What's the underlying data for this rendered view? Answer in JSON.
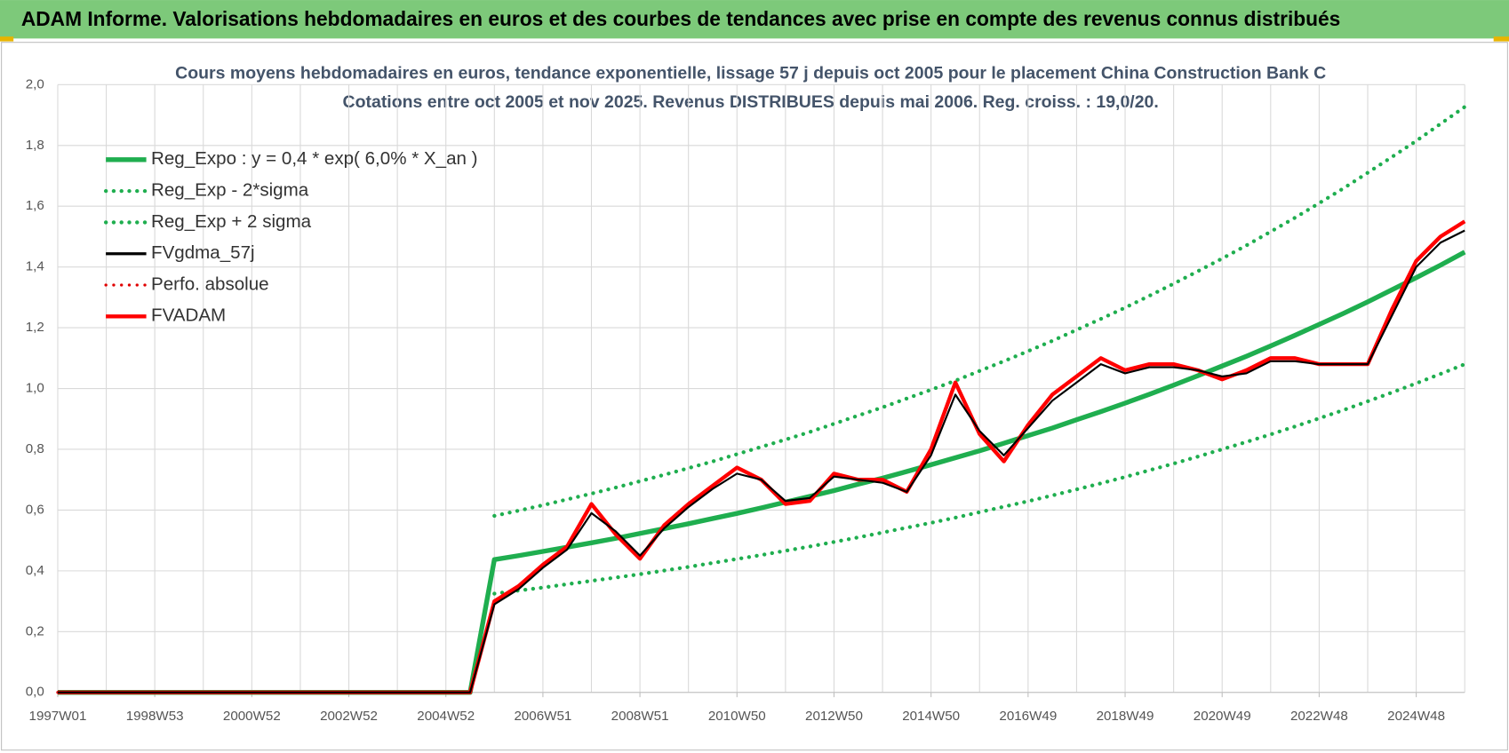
{
  "header": {
    "title": "ADAM Informe. Valorisations hebdomadaires en euros et des courbes de tendances avec prise en compte des revenus connus distribués"
  },
  "chart_data": {
    "type": "line",
    "title": "Cours moyens hebdomadaires en euros, tendance exponentielle, lissage 57 j depuis oct 2005 pour le placement China Construction Bank C",
    "subtitle": "Cotations entre oct 2005 et nov 2025. Revenus DISTRIBUES depuis mai 2006. Reg. croiss. : 19,0/20.",
    "categories": [
      "1997W01",
      null,
      null,
      null,
      "1998W53",
      null,
      null,
      null,
      "2000W52",
      null,
      null,
      null,
      "2002W52",
      null,
      null,
      null,
      "2004W52",
      null,
      null,
      null,
      "2006W51",
      null,
      null,
      null,
      "2008W51",
      null,
      null,
      null,
      "2010W50",
      null,
      null,
      null,
      "2012W50",
      null,
      null,
      null,
      "2014W50",
      null,
      null,
      null,
      "2016W49",
      null,
      null,
      null,
      "2018W49",
      null,
      null,
      null,
      "2020W49",
      null,
      null,
      null,
      "2022W48",
      null,
      null,
      null,
      "2024W48",
      null,
      null
    ],
    "ylim": [
      0,
      2
    ],
    "yticks": [
      {
        "value": 0,
        "label": "0,0"
      },
      {
        "value": 0.2,
        "label": "0,2"
      },
      {
        "value": 0.4,
        "label": "0,4"
      },
      {
        "value": 0.6,
        "label": "0,6"
      },
      {
        "value": 0.8,
        "label": "0,8"
      },
      {
        "value": 1,
        "label": "1,0"
      },
      {
        "value": 1.2,
        "label": "1,2"
      },
      {
        "value": 1.4,
        "label": "1,4"
      },
      {
        "value": 1.6,
        "label": "1,6"
      },
      {
        "value": 1.8,
        "label": "1,8"
      },
      {
        "value": 2,
        "label": "2,0"
      }
    ],
    "grid": true,
    "legend": "upper left",
    "series": [
      {
        "name": "Reg_Expo : y = 0,4 * exp( 6,0% *  X_an )",
        "color": "#1fae4f",
        "style": "solid",
        "values": [
          0,
          0,
          0,
          0,
          0,
          0,
          0,
          0,
          0,
          0,
          0,
          0,
          0,
          0,
          0,
          0,
          0,
          0,
          0.437,
          0.45,
          0.464,
          0.478,
          0.492,
          0.507,
          0.523,
          0.539,
          0.555,
          0.572,
          0.589,
          0.607,
          0.626,
          0.645,
          0.664,
          0.685,
          0.705,
          0.727,
          0.749,
          0.772,
          0.795,
          0.82,
          0.845,
          0.87,
          0.897,
          0.924,
          0.952,
          0.981,
          1.011,
          1.042,
          1.074,
          1.106,
          1.14,
          1.175,
          1.211,
          1.247,
          1.285,
          1.325,
          1.365,
          1.406,
          1.449
        ]
      },
      {
        "name": "Reg_Exp - 2*sigma",
        "color": "#1fae4f",
        "style": "dotted",
        "values": [
          null,
          null,
          null,
          null,
          null,
          null,
          null,
          null,
          null,
          null,
          null,
          null,
          null,
          null,
          null,
          null,
          null,
          null,
          0.325,
          0.335,
          0.345,
          0.356,
          0.367,
          0.378,
          0.389,
          0.401,
          0.413,
          0.426,
          0.439,
          0.452,
          0.466,
          0.48,
          0.495,
          0.51,
          0.526,
          0.542,
          0.558,
          0.575,
          0.593,
          0.611,
          0.629,
          0.648,
          0.668,
          0.688,
          0.709,
          0.731,
          0.753,
          0.776,
          0.8,
          0.824,
          0.849,
          0.875,
          0.902,
          0.929,
          0.958,
          0.987,
          1.017,
          1.048,
          1.08
        ]
      },
      {
        "name": "Reg_Exp + 2 sigma",
        "color": "#1fae4f",
        "style": "dotted",
        "values": [
          null,
          null,
          null,
          null,
          null,
          null,
          null,
          null,
          null,
          null,
          null,
          null,
          null,
          null,
          null,
          null,
          null,
          null,
          0.581,
          0.598,
          0.616,
          0.635,
          0.654,
          0.674,
          0.695,
          0.716,
          0.738,
          0.76,
          0.784,
          0.808,
          0.832,
          0.857,
          0.884,
          0.911,
          0.938,
          0.967,
          0.996,
          1.026,
          1.058,
          1.09,
          1.123,
          1.157,
          1.193,
          1.229,
          1.266,
          1.305,
          1.345,
          1.386,
          1.428,
          1.471,
          1.516,
          1.562,
          1.61,
          1.659,
          1.71,
          1.762,
          1.815,
          1.871,
          1.927
        ]
      },
      {
        "name": "FVgdma_57j",
        "color": "#000000",
        "style": "solid",
        "values": [
          0,
          0,
          0,
          0,
          0,
          0,
          0,
          0,
          0,
          0,
          0,
          0,
          0,
          0,
          0,
          0,
          0,
          0,
          0.29,
          0.34,
          0.41,
          0.47,
          0.59,
          0.53,
          0.45,
          0.54,
          0.61,
          0.67,
          0.72,
          0.7,
          0.63,
          0.64,
          0.71,
          0.7,
          0.69,
          0.66,
          0.78,
          0.98,
          0.86,
          0.78,
          0.87,
          0.96,
          1.02,
          1.08,
          1.05,
          1.07,
          1.07,
          1.06,
          1.04,
          1.05,
          1.09,
          1.09,
          1.08,
          1.08,
          1.08,
          1.24,
          1.4,
          1.48,
          1.52
        ]
      },
      {
        "name": "Perfo. absolue",
        "color": "#e00000",
        "style": "dotted",
        "values": [
          0,
          0,
          0,
          0,
          0,
          0,
          0,
          0,
          0,
          0,
          0,
          0,
          0,
          0,
          0,
          0,
          0,
          0,
          0.3,
          0.35,
          0.42,
          0.48,
          0.62,
          0.52,
          0.44,
          0.55,
          0.62,
          0.68,
          0.74,
          0.7,
          0.62,
          0.63,
          0.72,
          0.7,
          0.7,
          0.66,
          0.8,
          1.02,
          0.85,
          0.76,
          0.88,
          0.98,
          1.04,
          1.1,
          1.06,
          1.08,
          1.08,
          1.06,
          1.03,
          1.06,
          1.1,
          1.1,
          1.08,
          1.08,
          1.08,
          1.26,
          1.42,
          1.5,
          1.55
        ]
      },
      {
        "name": "FVADAM",
        "color": "#ff0000",
        "style": "solid",
        "values": [
          0,
          0,
          0,
          0,
          0,
          0,
          0,
          0,
          0,
          0,
          0,
          0,
          0,
          0,
          0,
          0,
          0,
          0,
          0.3,
          0.35,
          0.42,
          0.48,
          0.62,
          0.52,
          0.44,
          0.55,
          0.62,
          0.68,
          0.74,
          0.7,
          0.62,
          0.63,
          0.72,
          0.7,
          0.7,
          0.66,
          0.8,
          1.02,
          0.85,
          0.76,
          0.88,
          0.98,
          1.04,
          1.1,
          1.06,
          1.08,
          1.08,
          1.06,
          1.03,
          1.06,
          1.1,
          1.1,
          1.08,
          1.08,
          1.08,
          1.26,
          1.42,
          1.5,
          1.55
        ]
      }
    ]
  }
}
